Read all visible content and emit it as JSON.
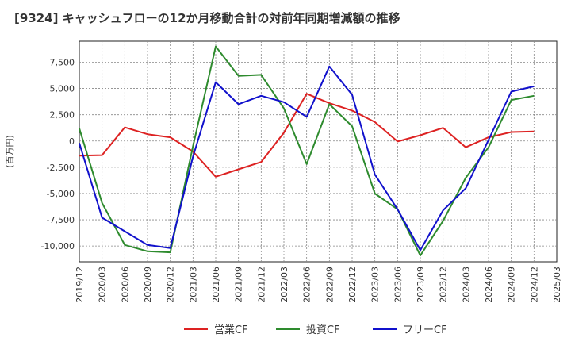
{
  "chart_data": {
    "type": "line",
    "title": "[9324]  キャッシュフローの12か月移動合計の対前年同期増減額の推移",
    "ylabel": "(百万円)",
    "xlabel": "",
    "ylim": [
      -11500,
      9500
    ],
    "yticks": [
      7500,
      5000,
      2500,
      0,
      -2500,
      -5000,
      -7500,
      -10000
    ],
    "ytick_labels": [
      "7,500",
      "5,000",
      "2,500",
      "0",
      "-2,500",
      "-5,000",
      "-7,500",
      "-10,000"
    ],
    "x_categories": [
      "2019/12",
      "2020/03",
      "2020/06",
      "2020/09",
      "2020/12",
      "2021/03",
      "2021/06",
      "2021/09",
      "2021/12",
      "2022/03",
      "2022/06",
      "2022/09",
      "2022/12",
      "2023/03",
      "2023/06",
      "2023/09",
      "2023/12",
      "2024/03",
      "2024/06",
      "2024/09",
      "2024/12",
      "2025/03"
    ],
    "grid": true,
    "legend_position": "bottom",
    "series": [
      {
        "name": "営業CF",
        "color": "#dd2222",
        "values": [
          -1400,
          -1350,
          1300,
          650,
          350,
          -1000,
          -3400,
          -2700,
          -2000,
          800,
          4500,
          3600,
          2900,
          1800,
          -50,
          550,
          1250,
          -600,
          350,
          850,
          900,
          null
        ]
      },
      {
        "name": "投資CF",
        "color": "#2e8b2e",
        "values": [
          1200,
          -5900,
          -9900,
          -10500,
          -10600,
          -500,
          9000,
          6200,
          6300,
          3100,
          -2200,
          3500,
          1400,
          -5000,
          -6500,
          -10900,
          -7600,
          -3500,
          -600,
          3900,
          4300,
          null
        ]
      },
      {
        "name": "フリーCF",
        "color": "#1111cc",
        "values": [
          -200,
          -7300,
          -8600,
          -9900,
          -10200,
          -1500,
          5600,
          3500,
          4300,
          3700,
          2300,
          7100,
          4400,
          -3200,
          -6500,
          -10400,
          -6600,
          -4500,
          100,
          4700,
          5200,
          null
        ]
      }
    ]
  }
}
